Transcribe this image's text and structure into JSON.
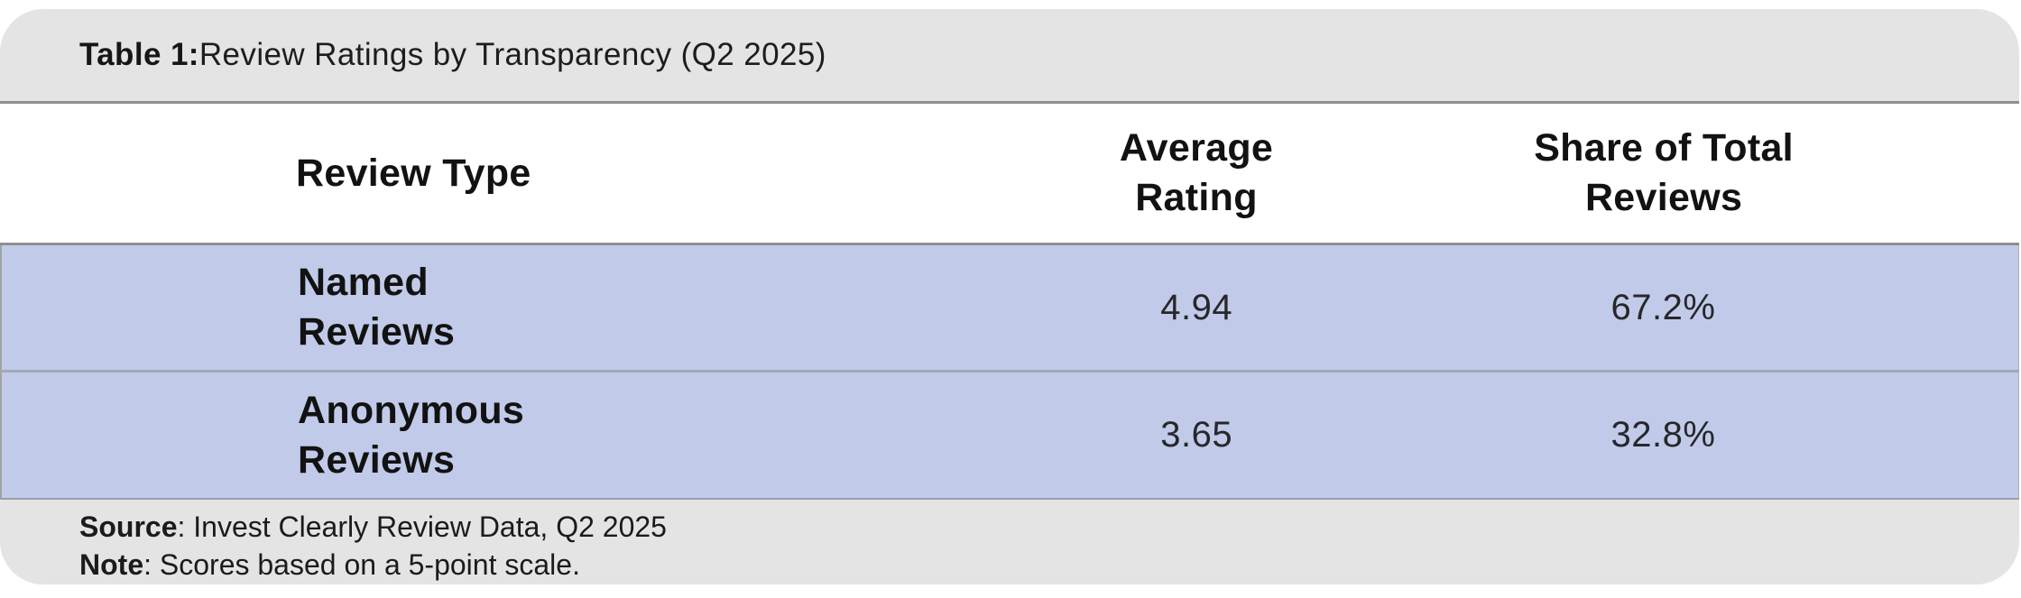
{
  "figure": {
    "title_prefix": "Table 1:",
    "title_rest": " Review Ratings by Transparency (Q2 2025)"
  },
  "table": {
    "columns": [
      {
        "label": "Review Type"
      },
      {
        "label": "Average\nRating"
      },
      {
        "label": "Share of Total\nReviews"
      }
    ],
    "rows": [
      {
        "review_type": "Named\nReviews",
        "average_rating": "4.94",
        "share_of_total": "67.2%"
      },
      {
        "review_type": "Anonymous\nReviews",
        "average_rating": "3.65",
        "share_of_total": "32.8%"
      }
    ]
  },
  "footer": {
    "source_label": "Source",
    "source_text": ": Invest Clearly Review Data, Q2 2025",
    "note_label": "Note",
    "note_text": ": Scores based on a 5-point scale."
  },
  "colors": {
    "row_highlight": "#c1cbe9",
    "band_gray": "#e4e4e4",
    "divider_gray": "#8f8f8f"
  },
  "chart_data": {
    "type": "table",
    "title": "Table 1: Review Ratings by Transparency (Q2 2025)",
    "columns": [
      "Review Type",
      "Average Rating",
      "Share of Total Reviews"
    ],
    "rows": [
      [
        "Named Reviews",
        4.94,
        "67.2%"
      ],
      [
        "Anonymous Reviews",
        3.65,
        "32.8%"
      ]
    ],
    "source": "Invest Clearly Review Data, Q2 2025",
    "note": "Scores based on a 5-point scale.",
    "layout": "two highlighted data rows on periwinkle background; gray rounded title and footer bands"
  }
}
